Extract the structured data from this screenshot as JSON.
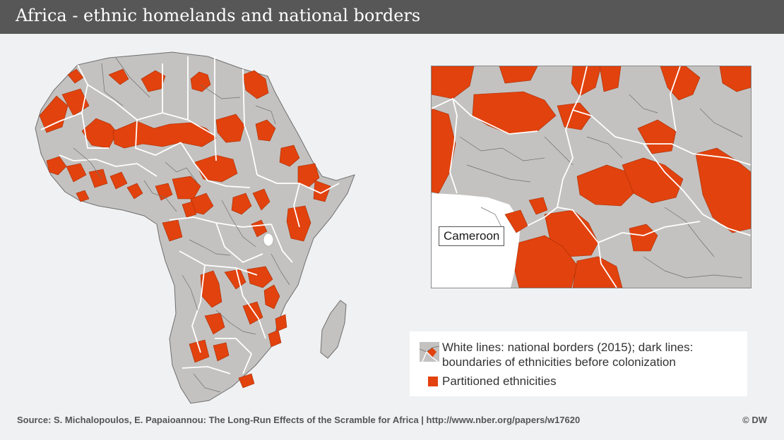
{
  "header": {
    "title": "Africa - ethnic homelands and national borders"
  },
  "inset": {
    "callout_label": "Cameroon"
  },
  "legend": {
    "ethnic_text": "White lines: national borders (2015); dark lines: boundaries of ethnicities before colonization",
    "partitioned_text": "Partitioned ethnicities"
  },
  "footer": {
    "source": "Source: S. Michalopoulos, E. Papaioannou: The Long-Run Effects of the Scramble for Africa | http://www.nber.org/papers/w17620",
    "credit": "© DW"
  },
  "colors": {
    "land": "#c4c2c0",
    "partitioned": "#e2420d",
    "ethnic_lines": "#6e6e6e",
    "national_borders": "#ffffff",
    "header_bg": "#575757",
    "page_bg": "#f0f1f3"
  }
}
